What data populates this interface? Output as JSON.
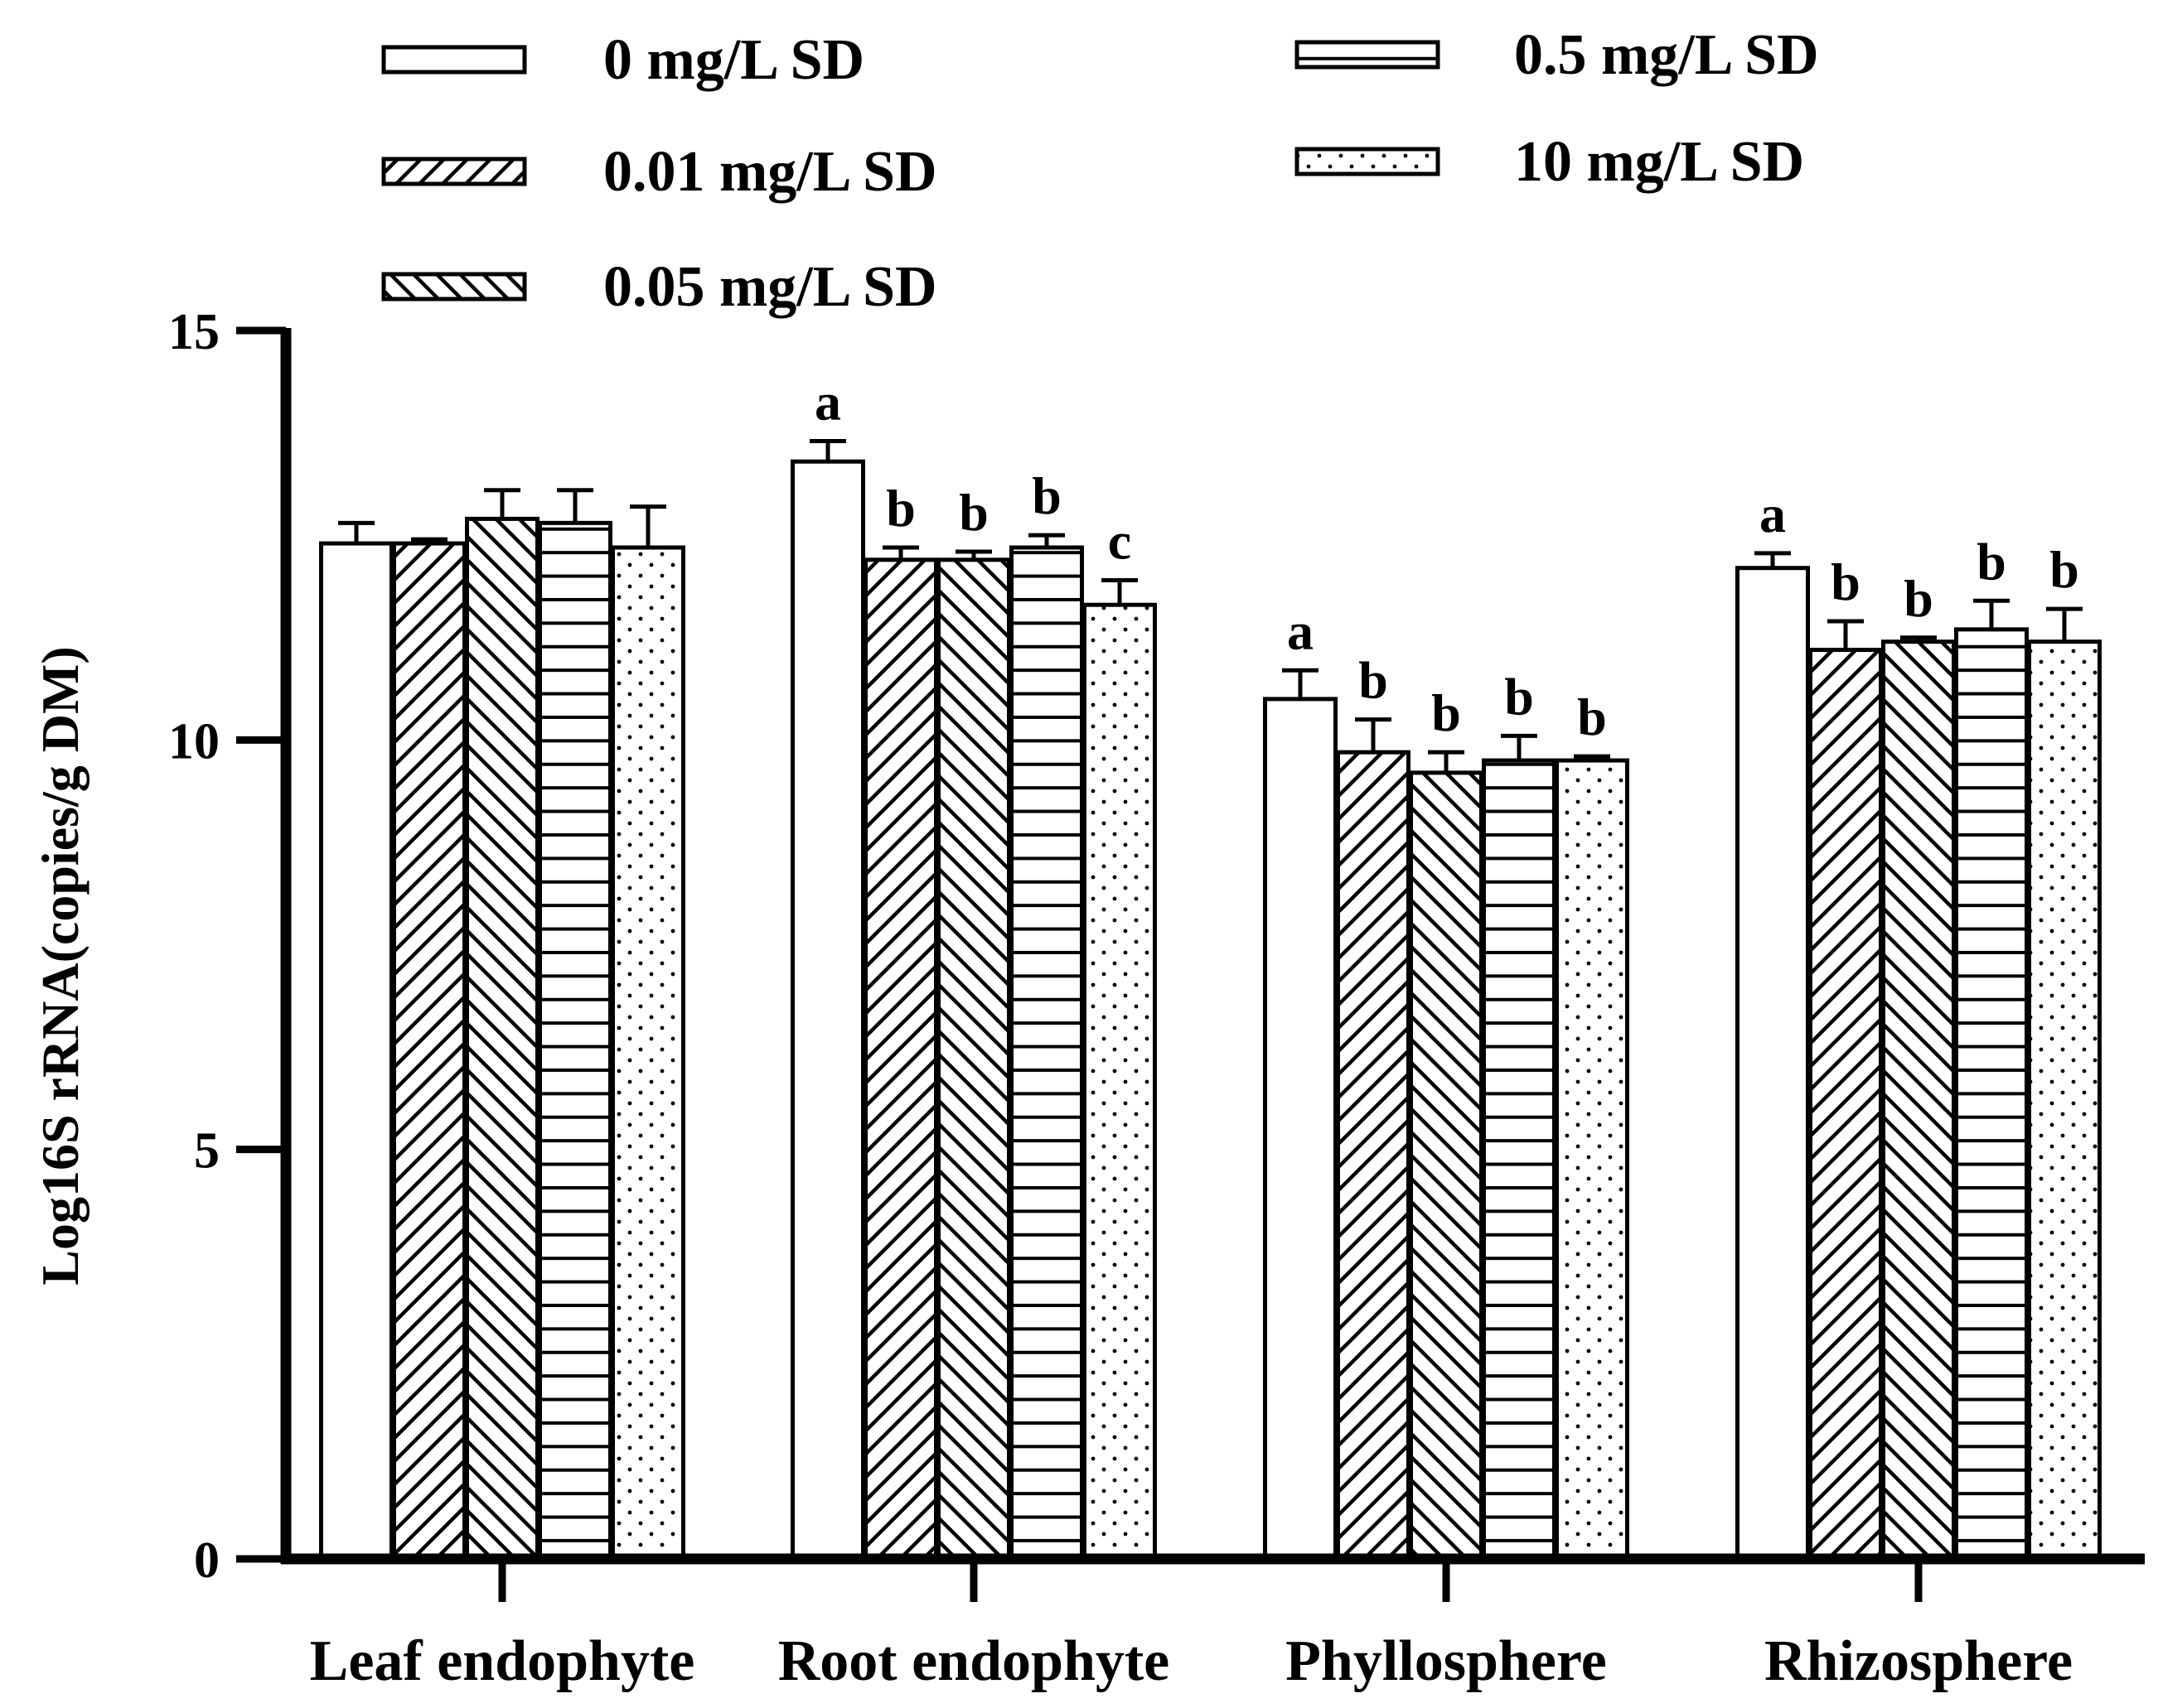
{
  "chart_data": {
    "type": "bar",
    "title": "",
    "xlabel": "",
    "ylabel": "Log16S rRNA(copies/g DM)",
    "ylim": [
      0,
      15
    ],
    "yticks": [
      0,
      5,
      10,
      15
    ],
    "grid": false,
    "legend_position": "top",
    "categories": [
      "Leaf endophyte",
      "Root endophyte",
      "Phyllosphere",
      "Rhizosphere"
    ],
    "series": [
      {
        "name": "0 mg/L SD",
        "pattern": "blank",
        "values": [
          12.4,
          13.4,
          10.5,
          12.1
        ],
        "errors": [
          0.25,
          0.25,
          0.35,
          0.18
        ],
        "labels": [
          "",
          "a",
          "a",
          "a"
        ]
      },
      {
        "name": "0.01 mg/L SD",
        "pattern": "diagonal-up",
        "values": [
          12.4,
          12.2,
          9.85,
          11.1
        ],
        "errors": [
          0.05,
          0.15,
          0.4,
          0.35
        ],
        "labels": [
          "",
          "b",
          "b",
          "b"
        ]
      },
      {
        "name": "0.05 mg/L SD",
        "pattern": "diagonal-down",
        "values": [
          12.7,
          12.2,
          9.6,
          11.2
        ],
        "errors": [
          0.35,
          0.1,
          0.25,
          0.05
        ],
        "labels": [
          "",
          "b",
          "b",
          "b"
        ]
      },
      {
        "name": "0.5 mg/L SD",
        "pattern": "horizontal",
        "values": [
          12.65,
          12.35,
          9.75,
          11.35
        ],
        "errors": [
          0.4,
          0.15,
          0.3,
          0.35
        ],
        "labels": [
          "",
          "b",
          "b",
          "b"
        ]
      },
      {
        "name": "10 mg/L SD",
        "pattern": "dotted",
        "values": [
          12.35,
          11.65,
          9.75,
          11.2
        ],
        "errors": [
          0.5,
          0.3,
          0.05,
          0.4
        ],
        "labels": [
          "",
          "c",
          "b",
          "b"
        ]
      }
    ]
  },
  "colors": {
    "ink": "#000000",
    "fill": "#ffffff"
  }
}
